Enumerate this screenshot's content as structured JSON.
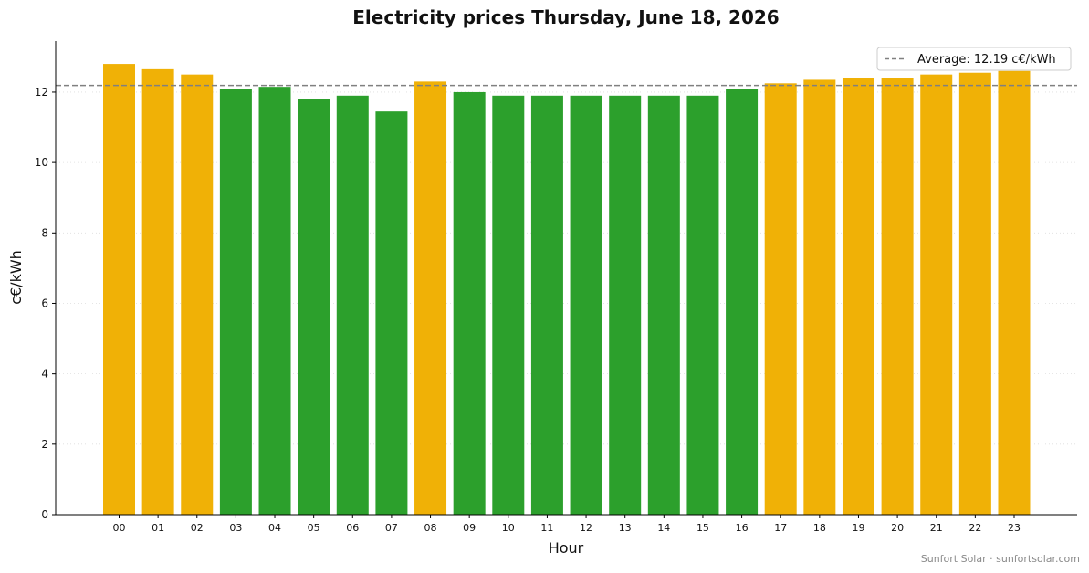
{
  "chart_data": {
    "type": "bar",
    "title": "Electricity prices Thursday, June 18, 2026",
    "xlabel": "Hour",
    "ylabel": "c€/kWh",
    "categories": [
      "00",
      "01",
      "02",
      "03",
      "04",
      "05",
      "06",
      "07",
      "08",
      "09",
      "10",
      "11",
      "12",
      "13",
      "14",
      "15",
      "16",
      "17",
      "18",
      "19",
      "20",
      "21",
      "22",
      "23"
    ],
    "values": [
      12.8,
      12.65,
      12.5,
      12.1,
      12.15,
      11.8,
      11.9,
      11.45,
      12.3,
      12.0,
      11.9,
      11.9,
      11.9,
      11.9,
      11.9,
      11.9,
      12.1,
      12.25,
      12.35,
      12.4,
      12.4,
      12.5,
      12.55,
      12.6
    ],
    "bar_colors": [
      "#f0b106",
      "#f0b106",
      "#f0b106",
      "#2ca02c",
      "#2ca02c",
      "#2ca02c",
      "#2ca02c",
      "#2ca02c",
      "#f0b106",
      "#2ca02c",
      "#2ca02c",
      "#2ca02c",
      "#2ca02c",
      "#2ca02c",
      "#2ca02c",
      "#2ca02c",
      "#2ca02c",
      "#f0b106",
      "#f0b106",
      "#f0b106",
      "#f0b106",
      "#f0b106",
      "#f0b106",
      "#f0b106"
    ],
    "ylim": [
      0,
      13.45
    ],
    "yticks": [
      0,
      2,
      4,
      6,
      8,
      10,
      12
    ],
    "average": {
      "value": 12.19,
      "label": "Average: 12.19 c€/kWh",
      "color": "#808080"
    },
    "grid": "horizontal-dotted",
    "legend_position": "top-right"
  },
  "footer": "Sunfort Solar · sunfortsolar.com"
}
